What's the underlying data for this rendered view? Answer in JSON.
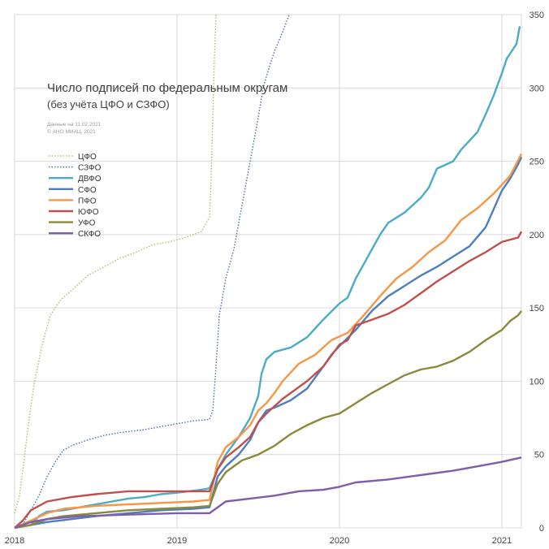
{
  "chart_data": {
    "type": "line",
    "title": "Число подписей по федеральным округам",
    "subtitle": "(без учёта ЦФО и СЗФО)",
    "notes": [
      "Данные на 11.02.2021",
      "© АНО МИАЦ, 2021"
    ],
    "xlabel": "",
    "ylabel": "",
    "x_ticks": [
      "2018",
      "2019",
      "2020",
      "2021"
    ],
    "x_range": [
      2018.0,
      2021.12
    ],
    "ylim": [
      0,
      350
    ],
    "y_ticks": [
      0,
      50,
      100,
      150,
      200,
      250,
      300,
      350
    ],
    "y_axis_side": "right",
    "grid": true,
    "legend_position": "left",
    "series": [
      {
        "name": "ЦФО",
        "color": "#a9c16e",
        "style": "dotted",
        "points": [
          [
            2018.0,
            10
          ],
          [
            2018.03,
            22
          ],
          [
            2018.06,
            48
          ],
          [
            2018.09,
            75
          ],
          [
            2018.12,
            98
          ],
          [
            2018.17,
            125
          ],
          [
            2018.22,
            145
          ],
          [
            2018.28,
            155
          ],
          [
            2018.35,
            162
          ],
          [
            2018.45,
            172
          ],
          [
            2018.55,
            178
          ],
          [
            2018.65,
            184
          ],
          [
            2018.75,
            188
          ],
          [
            2018.85,
            193
          ],
          [
            2018.95,
            195
          ],
          [
            2019.05,
            198
          ],
          [
            2019.15,
            202
          ],
          [
            2019.18,
            208
          ],
          [
            2019.2,
            212
          ],
          [
            2019.21,
            240
          ],
          [
            2019.22,
            280
          ],
          [
            2019.23,
            320
          ],
          [
            2019.24,
            350
          ]
        ]
      },
      {
        "name": "СЗФО",
        "color": "#4a6fa5",
        "style": "dotted",
        "points": [
          [
            2018.0,
            0
          ],
          [
            2018.05,
            2
          ],
          [
            2018.1,
            12
          ],
          [
            2018.15,
            22
          ],
          [
            2018.2,
            35
          ],
          [
            2018.25,
            45
          ],
          [
            2018.3,
            53
          ],
          [
            2018.35,
            56
          ],
          [
            2018.45,
            60
          ],
          [
            2018.55,
            63
          ],
          [
            2018.65,
            65
          ],
          [
            2018.8,
            67
          ],
          [
            2018.95,
            70
          ],
          [
            2019.1,
            73
          ],
          [
            2019.2,
            74
          ],
          [
            2019.22,
            80
          ],
          [
            2019.24,
            110
          ],
          [
            2019.26,
            145
          ],
          [
            2019.3,
            170
          ],
          [
            2019.35,
            190
          ],
          [
            2019.4,
            220
          ],
          [
            2019.45,
            250
          ],
          [
            2019.5,
            280
          ],
          [
            2019.53,
            300
          ],
          [
            2019.57,
            315
          ],
          [
            2019.6,
            325
          ],
          [
            2019.65,
            338
          ],
          [
            2019.69,
            350
          ]
        ]
      },
      {
        "name": "ДВФО",
        "color": "#4bacc6",
        "style": "solid",
        "points": [
          [
            2018.0,
            0
          ],
          [
            2018.1,
            2
          ],
          [
            2018.15,
            8
          ],
          [
            2018.2,
            11
          ],
          [
            2018.3,
            12
          ],
          [
            2018.4,
            14
          ],
          [
            2018.5,
            16
          ],
          [
            2018.6,
            18
          ],
          [
            2018.7,
            20
          ],
          [
            2018.8,
            21
          ],
          [
            2018.9,
            23
          ],
          [
            2019.0,
            24
          ],
          [
            2019.15,
            26
          ],
          [
            2019.2,
            27
          ],
          [
            2019.25,
            40
          ],
          [
            2019.3,
            50
          ],
          [
            2019.38,
            62
          ],
          [
            2019.45,
            75
          ],
          [
            2019.5,
            90
          ],
          [
            2019.52,
            105
          ],
          [
            2019.55,
            115
          ],
          [
            2019.6,
            120
          ],
          [
            2019.7,
            123
          ],
          [
            2019.8,
            130
          ],
          [
            2019.9,
            142
          ],
          [
            2020.0,
            153
          ],
          [
            2020.05,
            157
          ],
          [
            2020.1,
            170
          ],
          [
            2020.15,
            180
          ],
          [
            2020.2,
            190
          ],
          [
            2020.25,
            200
          ],
          [
            2020.3,
            208
          ],
          [
            2020.4,
            215
          ],
          [
            2020.5,
            225
          ],
          [
            2020.55,
            232
          ],
          [
            2020.6,
            245
          ],
          [
            2020.7,
            250
          ],
          [
            2020.75,
            258
          ],
          [
            2020.85,
            270
          ],
          [
            2020.9,
            282
          ],
          [
            2020.95,
            295
          ],
          [
            2021.0,
            310
          ],
          [
            2021.03,
            320
          ],
          [
            2021.06,
            325
          ],
          [
            2021.09,
            330
          ],
          [
            2021.11,
            342
          ]
        ]
      },
      {
        "name": "СФО",
        "color": "#4f7ec0",
        "style": "solid",
        "points": [
          [
            2018.0,
            0
          ],
          [
            2018.1,
            2
          ],
          [
            2018.2,
            4
          ],
          [
            2018.35,
            6
          ],
          [
            2018.5,
            8
          ],
          [
            2018.7,
            10
          ],
          [
            2018.9,
            12
          ],
          [
            2019.1,
            13
          ],
          [
            2019.2,
            14
          ],
          [
            2019.25,
            35
          ],
          [
            2019.3,
            42
          ],
          [
            2019.38,
            50
          ],
          [
            2019.45,
            60
          ],
          [
            2019.5,
            72
          ],
          [
            2019.55,
            80
          ],
          [
            2019.6,
            82
          ],
          [
            2019.7,
            87
          ],
          [
            2019.8,
            95
          ],
          [
            2019.9,
            110
          ],
          [
            2019.95,
            118
          ],
          [
            2020.0,
            124
          ],
          [
            2020.1,
            135
          ],
          [
            2020.2,
            148
          ],
          [
            2020.3,
            158
          ],
          [
            2020.4,
            165
          ],
          [
            2020.5,
            172
          ],
          [
            2020.6,
            178
          ],
          [
            2020.7,
            185
          ],
          [
            2020.8,
            192
          ],
          [
            2020.9,
            205
          ],
          [
            2021.0,
            230
          ],
          [
            2021.05,
            238
          ],
          [
            2021.1,
            248
          ],
          [
            2021.12,
            253
          ]
        ]
      },
      {
        "name": "ПФО",
        "color": "#f79646",
        "style": "solid",
        "points": [
          [
            2018.0,
            0
          ],
          [
            2018.1,
            5
          ],
          [
            2018.2,
            10
          ],
          [
            2018.3,
            13
          ],
          [
            2018.5,
            15
          ],
          [
            2018.7,
            16
          ],
          [
            2018.9,
            17
          ],
          [
            2019.1,
            18
          ],
          [
            2019.2,
            19
          ],
          [
            2019.25,
            45
          ],
          [
            2019.3,
            55
          ],
          [
            2019.38,
            62
          ],
          [
            2019.45,
            70
          ],
          [
            2019.5,
            80
          ],
          [
            2019.55,
            85
          ],
          [
            2019.6,
            92
          ],
          [
            2019.65,
            100
          ],
          [
            2019.75,
            112
          ],
          [
            2019.85,
            118
          ],
          [
            2019.95,
            128
          ],
          [
            2020.05,
            133
          ],
          [
            2020.15,
            145
          ],
          [
            2020.25,
            158
          ],
          [
            2020.35,
            170
          ],
          [
            2020.45,
            178
          ],
          [
            2020.55,
            188
          ],
          [
            2020.65,
            196
          ],
          [
            2020.75,
            210
          ],
          [
            2020.85,
            218
          ],
          [
            2020.95,
            228
          ],
          [
            2021.05,
            240
          ],
          [
            2021.12,
            255
          ]
        ]
      },
      {
        "name": "ЮФО",
        "color": "#c0504d",
        "style": "solid",
        "points": [
          [
            2018.0,
            0
          ],
          [
            2018.05,
            5
          ],
          [
            2018.1,
            12
          ],
          [
            2018.2,
            18
          ],
          [
            2018.35,
            21
          ],
          [
            2018.5,
            23
          ],
          [
            2018.7,
            25
          ],
          [
            2019.0,
            25
          ],
          [
            2019.2,
            25
          ],
          [
            2019.25,
            40
          ],
          [
            2019.3,
            48
          ],
          [
            2019.38,
            55
          ],
          [
            2019.45,
            62
          ],
          [
            2019.5,
            72
          ],
          [
            2019.55,
            78
          ],
          [
            2019.65,
            88
          ],
          [
            2019.8,
            100
          ],
          [
            2019.9,
            110
          ],
          [
            2020.0,
            125
          ],
          [
            2020.05,
            128
          ],
          [
            2020.1,
            138
          ],
          [
            2020.2,
            142
          ],
          [
            2020.3,
            146
          ],
          [
            2020.4,
            152
          ],
          [
            2020.5,
            160
          ],
          [
            2020.6,
            168
          ],
          [
            2020.7,
            175
          ],
          [
            2020.8,
            182
          ],
          [
            2020.9,
            188
          ],
          [
            2021.0,
            195
          ],
          [
            2021.1,
            198
          ],
          [
            2021.12,
            202
          ]
        ]
      },
      {
        "name": "УФО",
        "color": "#8a8a3a",
        "style": "solid",
        "points": [
          [
            2018.0,
            0
          ],
          [
            2018.1,
            2
          ],
          [
            2018.2,
            6
          ],
          [
            2018.3,
            8
          ],
          [
            2018.5,
            10
          ],
          [
            2018.7,
            12
          ],
          [
            2018.9,
            13
          ],
          [
            2019.1,
            14
          ],
          [
            2019.2,
            15
          ],
          [
            2019.25,
            30
          ],
          [
            2019.3,
            38
          ],
          [
            2019.4,
            46
          ],
          [
            2019.5,
            50
          ],
          [
            2019.6,
            56
          ],
          [
            2019.7,
            64
          ],
          [
            2019.8,
            70
          ],
          [
            2019.9,
            75
          ],
          [
            2020.0,
            78
          ],
          [
            2020.1,
            85
          ],
          [
            2020.2,
            92
          ],
          [
            2020.3,
            98
          ],
          [
            2020.4,
            104
          ],
          [
            2020.5,
            108
          ],
          [
            2020.6,
            110
          ],
          [
            2020.7,
            114
          ],
          [
            2020.8,
            120
          ],
          [
            2020.9,
            128
          ],
          [
            2021.0,
            135
          ],
          [
            2021.05,
            141
          ],
          [
            2021.1,
            145
          ],
          [
            2021.12,
            148
          ]
        ]
      },
      {
        "name": "СКФО",
        "color": "#7f5ea8",
        "style": "solid",
        "points": [
          [
            2018.0,
            0
          ],
          [
            2018.05,
            2
          ],
          [
            2018.1,
            4
          ],
          [
            2018.2,
            6
          ],
          [
            2018.4,
            8
          ],
          [
            2018.7,
            9
          ],
          [
            2019.0,
            10
          ],
          [
            2019.2,
            10
          ],
          [
            2019.3,
            18
          ],
          [
            2019.45,
            20
          ],
          [
            2019.6,
            22
          ],
          [
            2019.75,
            25
          ],
          [
            2019.9,
            26
          ],
          [
            2020.0,
            28
          ],
          [
            2020.1,
            31
          ],
          [
            2020.3,
            33
          ],
          [
            2020.5,
            36
          ],
          [
            2020.7,
            39
          ],
          [
            2020.85,
            42
          ],
          [
            2021.0,
            45
          ],
          [
            2021.12,
            48
          ]
        ]
      }
    ]
  }
}
